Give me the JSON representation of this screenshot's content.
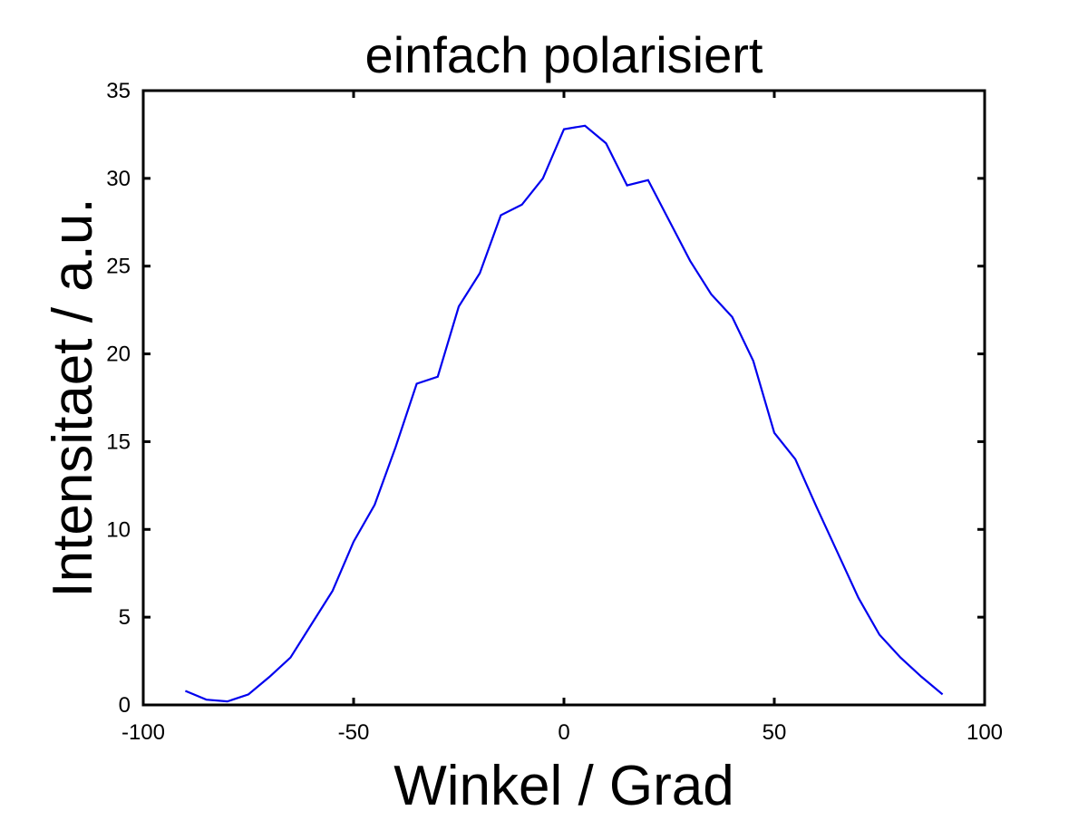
{
  "chart_data": {
    "type": "line",
    "title": "einfach polarisiert",
    "xlabel": "Winkel / Grad",
    "ylabel": "Intensitaet / a.u.",
    "xlim": [
      -100,
      100
    ],
    "ylim": [
      0,
      35
    ],
    "xticks": [
      -100,
      -50,
      0,
      50,
      100
    ],
    "yticks": [
      0,
      5,
      10,
      15,
      20,
      25,
      30,
      35
    ],
    "grid": false,
    "series": [
      {
        "color": "#0000ee",
        "x": [
          -90,
          -85,
          -80,
          -75,
          -70,
          -65,
          -60,
          -55,
          -50,
          -45,
          -40,
          -35,
          -30,
          -25,
          -20,
          -15,
          -10,
          -5,
          0,
          5,
          10,
          15,
          20,
          25,
          30,
          35,
          40,
          45,
          50,
          55,
          60,
          65,
          70,
          75,
          80,
          85,
          90
        ],
        "y": [
          0.8,
          0.3,
          0.2,
          0.6,
          1.6,
          2.7,
          4.6,
          6.5,
          9.3,
          11.4,
          14.7,
          18.3,
          18.7,
          22.7,
          24.6,
          27.9,
          28.5,
          30.0,
          32.8,
          33.0,
          32.0,
          29.6,
          29.9,
          27.6,
          25.3,
          23.4,
          22.1,
          19.6,
          15.5,
          14.0,
          11.3,
          8.7,
          6.1,
          4.0,
          2.7,
          1.6,
          0.6
        ]
      }
    ]
  }
}
